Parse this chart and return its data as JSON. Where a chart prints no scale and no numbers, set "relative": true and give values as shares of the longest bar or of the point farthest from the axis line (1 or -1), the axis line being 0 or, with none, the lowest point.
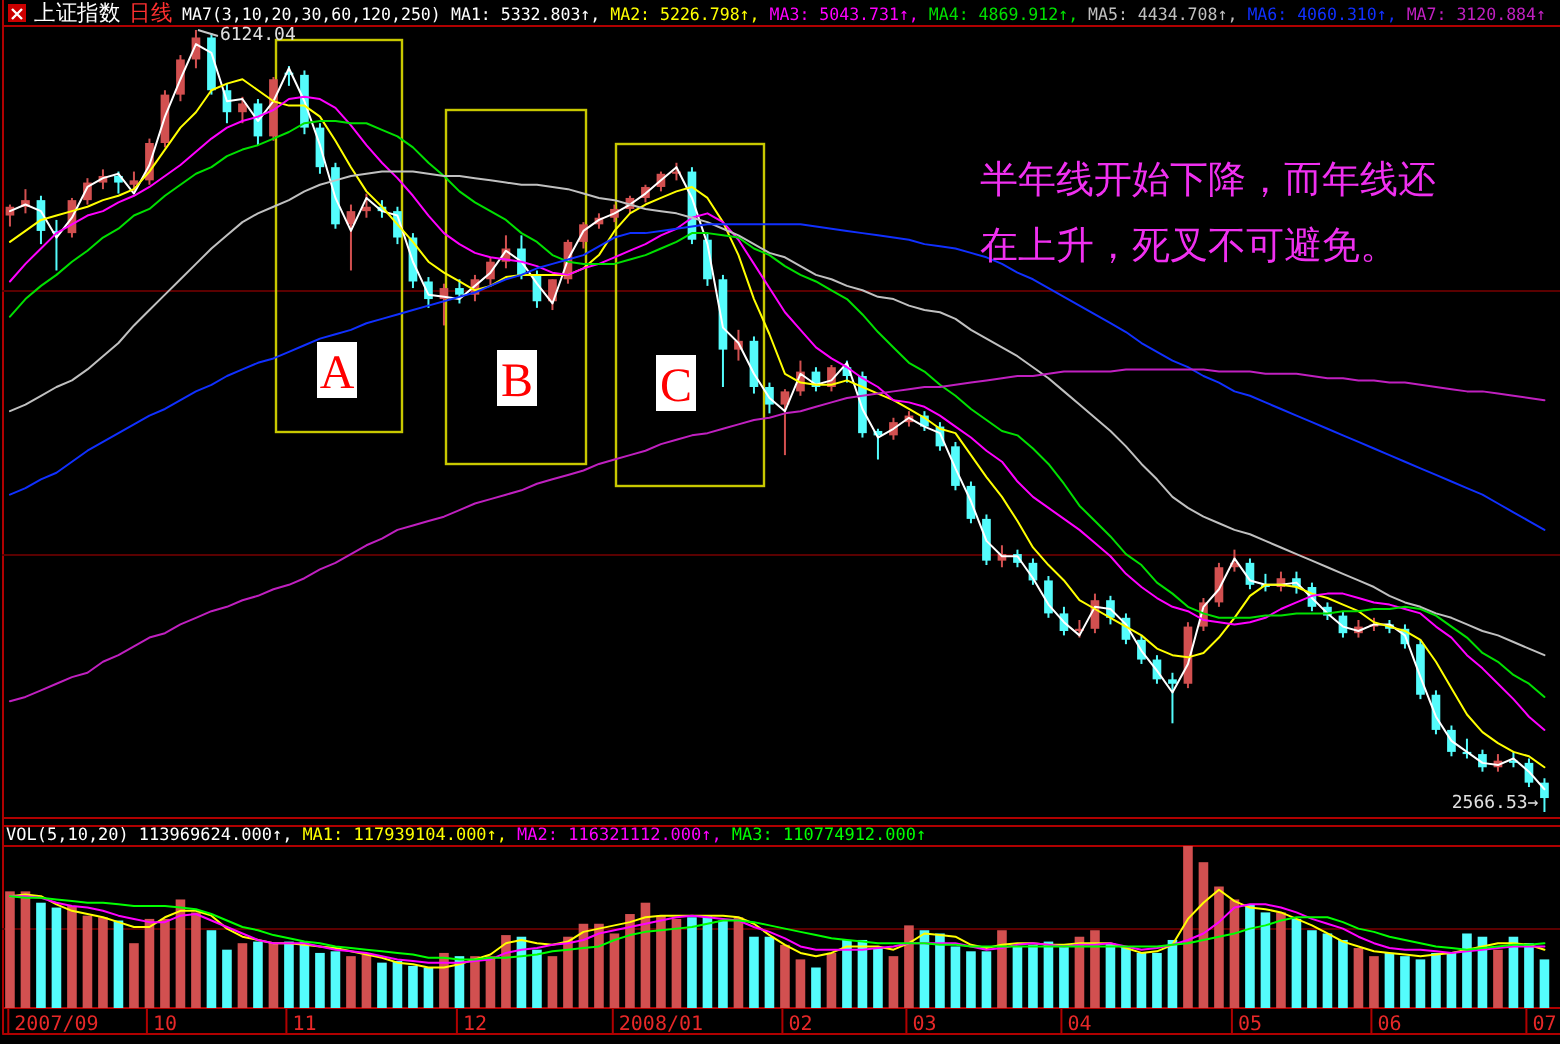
{
  "chart_data": [
    {
      "type": "candlestick",
      "title": "上证指数",
      "subtitle": "日线",
      "legend_title": "MA7(3,10,20,30,60,120,250)",
      "legend": "top",
      "tick_labels": false,
      "grid": "y",
      "yticks": [
        {
          "value": 4940,
          "label": null
        },
        {
          "value": 3740,
          "label": null
        }
      ],
      "categories": [
        null,
        null,
        null,
        "2007/09",
        null,
        null,
        null,
        null,
        null,
        null,
        "10",
        null,
        null,
        null,
        null,
        null,
        null,
        null,
        null,
        "11",
        null,
        null,
        null,
        null,
        null,
        null,
        null,
        null,
        null,
        null,
        "12",
        null,
        null,
        null,
        null,
        null,
        null,
        null,
        null,
        null,
        null,
        null,
        "2008/01",
        null,
        null,
        null,
        null,
        null,
        null,
        null,
        null,
        "02",
        null,
        null,
        null,
        null,
        null,
        null,
        null,
        "03",
        null,
        null,
        null,
        null,
        null,
        null,
        null,
        null,
        null,
        "04",
        null,
        null,
        null,
        null,
        null,
        null,
        null,
        null,
        null,
        null,
        "05",
        null,
        null,
        null,
        null,
        null,
        null,
        null,
        null,
        "06",
        null,
        null,
        null,
        null,
        null,
        null,
        null,
        null,
        null,
        "07"
      ],
      "ohlc": [
        [
          5280,
          5330,
          5230,
          5320
        ],
        [
          5320,
          5400,
          5290,
          5350
        ],
        [
          5350,
          5370,
          5150,
          5210
        ],
        [
          5210,
          5260,
          5030,
          5200
        ],
        [
          5200,
          5360,
          5180,
          5350
        ],
        [
          5350,
          5450,
          5330,
          5430
        ],
        [
          5430,
          5490,
          5400,
          5460
        ],
        [
          5460,
          5480,
          5380,
          5430
        ],
        [
          5420,
          5480,
          5390,
          5440
        ],
        [
          5440,
          5630,
          5420,
          5610
        ],
        [
          5610,
          5850,
          5590,
          5830
        ],
        [
          5830,
          6010,
          5800,
          5990
        ],
        [
          5990,
          6124.04,
          5950,
          6090
        ],
        [
          6090,
          6110,
          5830,
          5850
        ],
        [
          5850,
          5880,
          5700,
          5750
        ],
        [
          5750,
          5820,
          5700,
          5790
        ],
        [
          5790,
          5810,
          5600,
          5640
        ],
        [
          5640,
          5910,
          5620,
          5900
        ],
        [
          5930,
          5960,
          5870,
          5920
        ],
        [
          5920,
          5940,
          5650,
          5680
        ],
        [
          5680,
          5700,
          5470,
          5500
        ],
        [
          5500,
          5520,
          5220,
          5240
        ],
        [
          5240,
          5330,
          5030,
          5300
        ],
        [
          5300,
          5380,
          5270,
          5320
        ],
        [
          5320,
          5350,
          5270,
          5300
        ],
        [
          5300,
          5320,
          5150,
          5180
        ],
        [
          5180,
          5200,
          4950,
          4980
        ],
        [
          4980,
          5000,
          4860,
          4900
        ],
        [
          4900,
          4970,
          4780,
          4950
        ],
        [
          4950,
          4990,
          4880,
          4920
        ],
        [
          4920,
          5010,
          4890,
          4990
        ],
        [
          4990,
          5090,
          4960,
          5070
        ],
        [
          5070,
          5190,
          5040,
          5130
        ],
        [
          5130,
          5190,
          4990,
          5010
        ],
        [
          5010,
          5030,
          4860,
          4890
        ],
        [
          4890,
          4990,
          4850,
          4990
        ],
        [
          4990,
          5170,
          4970,
          5160
        ],
        [
          5160,
          5250,
          5130,
          5240
        ],
        [
          5240,
          5290,
          5220,
          5270
        ],
        [
          5270,
          5330,
          5250,
          5310
        ],
        [
          5310,
          5370,
          5290,
          5360
        ],
        [
          5360,
          5420,
          5340,
          5410
        ],
        [
          5410,
          5480,
          5390,
          5470
        ],
        [
          5470,
          5520,
          5440,
          5480
        ],
        [
          5480,
          5500,
          5150,
          5170
        ],
        [
          5170,
          5200,
          4960,
          4990
        ],
        [
          4990,
          5010,
          4500,
          4670
        ],
        [
          4670,
          4760,
          4620,
          4710
        ],
        [
          4710,
          4730,
          4470,
          4500
        ],
        [
          4500,
          4520,
          4380,
          4420
        ],
        [
          4420,
          4490,
          4190,
          4480
        ],
        [
          4480,
          4620,
          4460,
          4570
        ],
        [
          4570,
          4590,
          4480,
          4500
        ],
        [
          4500,
          4600,
          4480,
          4590
        ],
        [
          4590,
          4620,
          4520,
          4550
        ],
        [
          4550,
          4570,
          4270,
          4290
        ],
        [
          4300,
          4310,
          4170,
          4280
        ],
        [
          4280,
          4360,
          4260,
          4340
        ],
        [
          4340,
          4390,
          4320,
          4370
        ],
        [
          4370,
          4390,
          4300,
          4320
        ],
        [
          4320,
          4340,
          4210,
          4230
        ],
        [
          4230,
          4250,
          4030,
          4050
        ],
        [
          4050,
          4070,
          3880,
          3900
        ],
        [
          3900,
          3920,
          3690,
          3710
        ],
        [
          3710,
          3780,
          3680,
          3740
        ],
        [
          3740,
          3760,
          3680,
          3700
        ],
        [
          3700,
          3720,
          3600,
          3620
        ],
        [
          3620,
          3640,
          3450,
          3470
        ],
        [
          3470,
          3500,
          3370,
          3390
        ],
        [
          3390,
          3440,
          3360,
          3400
        ],
        [
          3400,
          3560,
          3380,
          3530
        ],
        [
          3530,
          3550,
          3420,
          3450
        ],
        [
          3450,
          3470,
          3330,
          3350
        ],
        [
          3350,
          3370,
          3240,
          3260
        ],
        [
          3260,
          3280,
          3150,
          3170
        ],
        [
          3170,
          3200,
          2970,
          3150
        ],
        [
          3150,
          3430,
          3130,
          3410
        ],
        [
          3410,
          3540,
          3390,
          3520
        ],
        [
          3520,
          3700,
          3500,
          3680
        ],
        [
          3680,
          3760,
          3660,
          3700
        ],
        [
          3700,
          3720,
          3580,
          3600
        ],
        [
          3600,
          3650,
          3570,
          3590
        ],
        [
          3590,
          3660,
          3570,
          3630
        ],
        [
          3630,
          3660,
          3560,
          3590
        ],
        [
          3590,
          3610,
          3480,
          3500
        ],
        [
          3500,
          3520,
          3440,
          3460
        ],
        [
          3460,
          3480,
          3360,
          3380
        ],
        [
          3380,
          3440,
          3360,
          3410
        ],
        [
          3410,
          3450,
          3390,
          3420
        ],
        [
          3420,
          3440,
          3380,
          3400
        ],
        [
          3400,
          3420,
          3310,
          3330
        ],
        [
          3330,
          3350,
          3080,
          3100
        ],
        [
          3100,
          3120,
          2920,
          2940
        ],
        [
          2940,
          2960,
          2820,
          2840
        ],
        [
          2840,
          2900,
          2810,
          2830
        ],
        [
          2830,
          2850,
          2750,
          2770
        ],
        [
          2770,
          2830,
          2750,
          2800
        ],
        [
          2800,
          2840,
          2770,
          2790
        ],
        [
          2790,
          2810,
          2680,
          2700
        ],
        [
          2700,
          2720,
          2566.53,
          2630
        ]
      ],
      "colors": [
        "#d25050",
        "#d25050",
        "#54fcfc",
        "#54fcfc",
        "#d25050",
        "#d25050",
        "#d25050",
        "#54fcfc",
        "#d25050",
        "#d25050",
        "#d25050",
        "#d25050",
        "#d25050",
        "#54fcfc",
        "#54fcfc",
        "#d25050",
        "#54fcfc",
        "#d25050",
        "#54fcfc",
        "#54fcfc",
        "#54fcfc",
        "#54fcfc",
        "#d25050",
        "#d25050",
        "#54fcfc",
        "#54fcfc",
        "#54fcfc",
        "#54fcfc",
        "#d25050",
        "#54fcfc",
        "#d25050",
        "#d25050",
        "#d25050",
        "#54fcfc",
        "#54fcfc",
        "#d25050",
        "#d25050",
        "#d25050",
        "#d25050",
        "#d25050",
        "#d25050",
        "#d25050",
        "#d25050",
        "#d25050",
        "#54fcfc",
        "#54fcfc",
        "#54fcfc",
        "#d25050",
        "#54fcfc",
        "#54fcfc",
        "#d25050",
        "#d25050",
        "#54fcfc",
        "#d25050",
        "#54fcfc",
        "#54fcfc",
        "#54fcfc",
        "#d25050",
        "#d25050",
        "#54fcfc",
        "#54fcfc",
        "#54fcfc",
        "#54fcfc",
        "#54fcfc",
        "#d25050",
        "#54fcfc",
        "#54fcfc",
        "#54fcfc",
        "#54fcfc",
        "#d25050",
        "#d25050",
        "#54fcfc",
        "#54fcfc",
        "#54fcfc",
        "#54fcfc",
        "#54fcfc",
        "#d25050",
        "#d25050",
        "#d25050",
        "#d25050",
        "#54fcfc",
        "#54fcfc",
        "#d25050",
        "#54fcfc",
        "#54fcfc",
        "#54fcfc",
        "#54fcfc",
        "#d25050",
        "#d25050",
        "#54fcfc",
        "#54fcfc",
        "#54fcfc",
        "#54fcfc",
        "#54fcfc",
        "#54fcfc",
        "#54fcfc",
        "#d25050",
        "#54fcfc",
        "#54fcfc",
        "#54fcfc"
      ],
      "series": [
        {
          "type": "line",
          "name": "MA1: 5332.803↑,",
          "color": "#ffffff",
          "values": [
            5300,
            5330,
            5300,
            5180,
            5270,
            5410,
            5450,
            5470,
            5380,
            5510,
            5730,
            5900,
            6060,
            6020,
            5800,
            5810,
            5710,
            5800,
            5950,
            5800,
            5600,
            5360,
            5210,
            5360,
            5300,
            5280,
            5070,
            4920,
            4910,
            4900,
            4960,
            5020,
            5120,
            5070,
            4970,
            4880,
            5080,
            5210,
            5260,
            5290,
            5330,
            5380,
            5440,
            5500,
            5360,
            5150,
            4770,
            4700,
            4560,
            4450,
            4390,
            4560,
            4510,
            4530,
            4610,
            4400,
            4270,
            4310,
            4360,
            4320,
            4290,
            4130,
            3980,
            3800,
            3730,
            3730,
            3630,
            3510,
            3430,
            3370,
            3500,
            3490,
            3420,
            3300,
            3210,
            3110,
            3240,
            3500,
            3580,
            3720,
            3620,
            3600,
            3600,
            3610,
            3540,
            3470,
            3410,
            3390,
            3420,
            3420,
            3370,
            3180,
            3000,
            2890,
            2840,
            2790,
            2780,
            2810,
            2750,
            2670
          ]
        },
        {
          "type": "line",
          "name": "MA2: 5226.798↑,",
          "color": "#ffff00",
          "values": [
            5160,
            5210,
            5260,
            5280,
            5300,
            5320,
            5350,
            5370,
            5400,
            5480,
            5580,
            5680,
            5750,
            5850,
            5880,
            5900,
            5850,
            5800,
            5780,
            5780,
            5730,
            5620,
            5500,
            5390,
            5320,
            5240,
            5160,
            5070,
            5020,
            4980,
            4940,
            4960,
            5000,
            5010,
            5010,
            5010,
            5010,
            5040,
            5100,
            5210,
            5290,
            5330,
            5360,
            5390,
            5410,
            5360,
            5250,
            5100,
            4900,
            4740,
            4560,
            4520,
            4510,
            4510,
            4530,
            4500,
            4470,
            4440,
            4400,
            4360,
            4310,
            4290,
            4190,
            4090,
            4000,
            3890,
            3770,
            3690,
            3620,
            3530,
            3490,
            3450,
            3410,
            3370,
            3310,
            3280,
            3270,
            3290,
            3360,
            3450,
            3550,
            3600,
            3600,
            3590,
            3560,
            3540,
            3510,
            3480,
            3430,
            3410,
            3390,
            3350,
            3250,
            3130,
            3010,
            2930,
            2880,
            2840,
            2820,
            2770
          ]
        },
        {
          "type": "line",
          "name": "MA3: 5043.731↑,",
          "color": "#ff00ff",
          "values": [
            4980,
            5060,
            5130,
            5200,
            5240,
            5280,
            5300,
            5340,
            5370,
            5410,
            5460,
            5510,
            5570,
            5630,
            5680,
            5710,
            5730,
            5760,
            5810,
            5820,
            5810,
            5770,
            5690,
            5600,
            5520,
            5450,
            5370,
            5280,
            5200,
            5150,
            5110,
            5090,
            5080,
            5070,
            5050,
            5020,
            5010,
            5040,
            5060,
            5090,
            5120,
            5150,
            5190,
            5220,
            5270,
            5290,
            5250,
            5170,
            5060,
            4950,
            4840,
            4760,
            4680,
            4630,
            4590,
            4540,
            4500,
            4440,
            4430,
            4410,
            4370,
            4320,
            4270,
            4210,
            4160,
            4070,
            4000,
            3950,
            3900,
            3850,
            3790,
            3730,
            3650,
            3590,
            3540,
            3500,
            3480,
            3440,
            3430,
            3420,
            3430,
            3450,
            3490,
            3520,
            3550,
            3560,
            3560,
            3540,
            3520,
            3510,
            3490,
            3470,
            3410,
            3360,
            3280,
            3220,
            3150,
            3080,
            3000,
            2940
          ]
        },
        {
          "type": "line",
          "name": "MA4: 4869.912↑,",
          "color": "#00e000",
          "values": [
            4820,
            4900,
            4960,
            5010,
            5070,
            5120,
            5180,
            5220,
            5280,
            5310,
            5370,
            5420,
            5470,
            5500,
            5550,
            5580,
            5600,
            5630,
            5660,
            5700,
            5710,
            5710,
            5700,
            5700,
            5670,
            5640,
            5590,
            5520,
            5460,
            5390,
            5340,
            5300,
            5260,
            5200,
            5160,
            5100,
            5070,
            5060,
            5060,
            5060,
            5080,
            5100,
            5130,
            5160,
            5200,
            5200,
            5190,
            5180,
            5130,
            5100,
            5050,
            5010,
            4980,
            4940,
            4900,
            4830,
            4750,
            4680,
            4610,
            4570,
            4510,
            4460,
            4400,
            4350,
            4300,
            4280,
            4220,
            4150,
            4060,
            3960,
            3890,
            3820,
            3740,
            3690,
            3610,
            3560,
            3500,
            3470,
            3450,
            3450,
            3450,
            3460,
            3460,
            3470,
            3470,
            3470,
            3480,
            3480,
            3490,
            3490,
            3500,
            3490,
            3460,
            3410,
            3360,
            3290,
            3250,
            3190,
            3150,
            3090
          ]
        },
        {
          "type": "line",
          "name": "MA5: 4434.708↑,",
          "color": "#c0c0c0",
          "values": [
            4390,
            4420,
            4460,
            4500,
            4530,
            4580,
            4640,
            4700,
            4780,
            4850,
            4920,
            4990,
            5060,
            5130,
            5190,
            5250,
            5290,
            5320,
            5350,
            5390,
            5420,
            5440,
            5460,
            5470,
            5480,
            5480,
            5480,
            5470,
            5460,
            5460,
            5450,
            5440,
            5430,
            5420,
            5420,
            5410,
            5400,
            5380,
            5360,
            5350,
            5330,
            5310,
            5300,
            5290,
            5270,
            5250,
            5220,
            5190,
            5150,
            5110,
            5090,
            5050,
            5010,
            4990,
            4960,
            4940,
            4910,
            4900,
            4870,
            4850,
            4840,
            4810,
            4760,
            4720,
            4680,
            4640,
            4590,
            4540,
            4480,
            4420,
            4360,
            4300,
            4230,
            4150,
            4080,
            4000,
            3950,
            3910,
            3880,
            3850,
            3830,
            3800,
            3770,
            3740,
            3710,
            3680,
            3650,
            3620,
            3590,
            3550,
            3520,
            3500,
            3470,
            3450,
            3420,
            3390,
            3370,
            3340,
            3310,
            3280
          ]
        },
        {
          "type": "line",
          "name": "MA6: 4060.310↑,",
          "color": "#1030ff",
          "values": [
            4010,
            4040,
            4080,
            4110,
            4160,
            4210,
            4250,
            4290,
            4330,
            4370,
            4400,
            4440,
            4480,
            4510,
            4550,
            4580,
            4610,
            4630,
            4660,
            4690,
            4720,
            4740,
            4760,
            4790,
            4810,
            4830,
            4850,
            4870,
            4890,
            4910,
            4930,
            4960,
            4990,
            5010,
            5040,
            5060,
            5080,
            5100,
            5140,
            5180,
            5200,
            5200,
            5210,
            5220,
            5230,
            5240,
            5240,
            5240,
            5240,
            5240,
            5240,
            5240,
            5230,
            5220,
            5210,
            5200,
            5190,
            5180,
            5170,
            5150,
            5140,
            5130,
            5110,
            5090,
            5060,
            5020,
            4990,
            4950,
            4910,
            4870,
            4830,
            4790,
            4750,
            4700,
            4660,
            4620,
            4590,
            4550,
            4520,
            4480,
            4460,
            4430,
            4400,
            4370,
            4340,
            4310,
            4280,
            4250,
            4220,
            4190,
            4160,
            4130,
            4100,
            4070,
            4040,
            4010,
            3970,
            3930,
            3890,
            3850
          ]
        },
        {
          "type": "line",
          "name": "MA7: 3120.884↑",
          "color": "#c020c0",
          "values": [
            3070,
            3090,
            3120,
            3150,
            3180,
            3200,
            3250,
            3280,
            3320,
            3360,
            3380,
            3420,
            3450,
            3480,
            3500,
            3530,
            3550,
            3580,
            3600,
            3630,
            3670,
            3700,
            3740,
            3780,
            3810,
            3850,
            3870,
            3890,
            3910,
            3940,
            3970,
            3990,
            4010,
            4030,
            4060,
            4080,
            4100,
            4120,
            4150,
            4170,
            4190,
            4210,
            4240,
            4260,
            4280,
            4290,
            4310,
            4330,
            4350,
            4360,
            4380,
            4390,
            4410,
            4430,
            4450,
            4460,
            4470,
            4480,
            4490,
            4500,
            4500,
            4510,
            4520,
            4530,
            4540,
            4550,
            4550,
            4560,
            4570,
            4570,
            4570,
            4570,
            4580,
            4580,
            4580,
            4580,
            4580,
            4580,
            4570,
            4570,
            4570,
            4560,
            4560,
            4560,
            4550,
            4540,
            4540,
            4530,
            4530,
            4520,
            4520,
            4510,
            4500,
            4490,
            4480,
            4480,
            4470,
            4460,
            4450,
            4440
          ]
        }
      ],
      "annotations": [
        "6124.04",
        {
          "text": "2566.53→",
          "x": "07",
          "y": 2566.53
        },
        "A",
        "B",
        "C",
        "半年线开始下降，而年线还在上升，死叉不可避免。"
      ]
    },
    {
      "type": "bar",
      "relative": true,
      "legend_title": "VOL(5,10,20)",
      "legend": "top",
      "tick_labels": "x",
      "ref_lines": [
        {
          "axis": "y",
          "value": 0.5,
          "color": "#5a0000"
        }
      ],
      "categories": [
        null,
        null,
        null,
        "2007/09",
        null,
        null,
        null,
        null,
        null,
        null,
        "10",
        null,
        null,
        null,
        null,
        null,
        null,
        null,
        null,
        "11",
        null,
        null,
        null,
        null,
        null,
        null,
        null,
        null,
        null,
        null,
        "12",
        null,
        null,
        null,
        null,
        null,
        null,
        null,
        null,
        null,
        null,
        null,
        "2008/01",
        null,
        null,
        null,
        null,
        null,
        null,
        null,
        null,
        "02",
        null,
        null,
        null,
        null,
        null,
        null,
        null,
        "03",
        null,
        null,
        null,
        null,
        null,
        null,
        null,
        null,
        null,
        "04",
        null,
        null,
        null,
        null,
        null,
        null,
        null,
        null,
        null,
        null,
        "05",
        null,
        null,
        null,
        null,
        null,
        null,
        null,
        null,
        "06",
        null,
        null,
        null,
        null,
        null,
        null,
        null,
        null,
        null,
        "07"
      ],
      "values": [
        0.72,
        0.72,
        0.65,
        0.62,
        0.63,
        0.57,
        0.56,
        0.54,
        0.4,
        0.55,
        0.55,
        0.67,
        0.59,
        0.48,
        0.36,
        0.4,
        0.41,
        0.4,
        0.41,
        0.41,
        0.34,
        0.35,
        0.32,
        0.33,
        0.28,
        0.29,
        0.26,
        0.25,
        0.34,
        0.32,
        0.32,
        0.32,
        0.45,
        0.44,
        0.36,
        0.32,
        0.44,
        0.52,
        0.52,
        0.46,
        0.58,
        0.65,
        0.57,
        0.55,
        0.56,
        0.57,
        0.54,
        0.56,
        0.44,
        0.44,
        0.39,
        0.3,
        0.25,
        0.34,
        0.42,
        0.42,
        0.37,
        0.32,
        0.51,
        0.48,
        0.46,
        0.38,
        0.35,
        0.35,
        0.48,
        0.38,
        0.39,
        0.41,
        0.38,
        0.44,
        0.48,
        0.4,
        0.38,
        0.34,
        0.34,
        0.42,
        1.0,
        0.9,
        0.75,
        0.67,
        0.64,
        0.59,
        0.59,
        0.55,
        0.48,
        0.46,
        0.42,
        0.37,
        0.32,
        0.34,
        0.32,
        0.3,
        0.34,
        0.34,
        0.46,
        0.44,
        0.36,
        0.44,
        0.4,
        0.3
      ],
      "colors": [
        "#d25050",
        "#d25050",
        "#54fcfc",
        "#54fcfc",
        "#d25050",
        "#d25050",
        "#d25050",
        "#54fcfc",
        "#d25050",
        "#d25050",
        "#d25050",
        "#d25050",
        "#d25050",
        "#54fcfc",
        "#54fcfc",
        "#d25050",
        "#54fcfc",
        "#d25050",
        "#54fcfc",
        "#54fcfc",
        "#54fcfc",
        "#54fcfc",
        "#d25050",
        "#d25050",
        "#54fcfc",
        "#54fcfc",
        "#54fcfc",
        "#54fcfc",
        "#d25050",
        "#54fcfc",
        "#d25050",
        "#d25050",
        "#d25050",
        "#54fcfc",
        "#54fcfc",
        "#d25050",
        "#d25050",
        "#d25050",
        "#d25050",
        "#d25050",
        "#d25050",
        "#d25050",
        "#d25050",
        "#d25050",
        "#54fcfc",
        "#54fcfc",
        "#54fcfc",
        "#d25050",
        "#54fcfc",
        "#54fcfc",
        "#d25050",
        "#d25050",
        "#54fcfc",
        "#d25050",
        "#54fcfc",
        "#54fcfc",
        "#54fcfc",
        "#d25050",
        "#d25050",
        "#54fcfc",
        "#54fcfc",
        "#54fcfc",
        "#54fcfc",
        "#54fcfc",
        "#d25050",
        "#54fcfc",
        "#54fcfc",
        "#54fcfc",
        "#54fcfc",
        "#d25050",
        "#d25050",
        "#54fcfc",
        "#54fcfc",
        "#54fcfc",
        "#54fcfc",
        "#54fcfc",
        "#d25050",
        "#d25050",
        "#d25050",
        "#d25050",
        "#54fcfc",
        "#54fcfc",
        "#d25050",
        "#54fcfc",
        "#54fcfc",
        "#54fcfc",
        "#54fcfc",
        "#d25050",
        "#d25050",
        "#54fcfc",
        "#54fcfc",
        "#54fcfc",
        "#54fcfc",
        "#54fcfc",
        "#54fcfc",
        "#54fcfc",
        "#d25050",
        "#54fcfc",
        "#54fcfc",
        "#54fcfc"
      ],
      "series": [
        {
          "type": "line",
          "name": "MA1: 117939104.000↑,",
          "color": "#ffff00",
          "values": [
            0.69,
            0.7,
            0.69,
            0.64,
            0.6,
            0.58,
            0.56,
            0.53,
            0.5,
            0.5,
            0.56,
            0.6,
            0.6,
            0.57,
            0.49,
            0.44,
            0.42,
            0.4,
            0.4,
            0.39,
            0.38,
            0.37,
            0.35,
            0.33,
            0.31,
            0.28,
            0.27,
            0.25,
            0.25,
            0.27,
            0.3,
            0.33,
            0.4,
            0.42,
            0.4,
            0.39,
            0.41,
            0.47,
            0.49,
            0.51,
            0.53,
            0.56,
            0.57,
            0.57,
            0.57,
            0.57,
            0.57,
            0.56,
            0.52,
            0.45,
            0.39,
            0.34,
            0.32,
            0.34,
            0.38,
            0.38,
            0.38,
            0.36,
            0.4,
            0.46,
            0.45,
            0.44,
            0.39,
            0.37,
            0.39,
            0.4,
            0.4,
            0.39,
            0.39,
            0.4,
            0.4,
            0.4,
            0.37,
            0.34,
            0.35,
            0.39,
            0.55,
            0.65,
            0.73,
            0.66,
            0.62,
            0.61,
            0.59,
            0.55,
            0.51,
            0.46,
            0.41,
            0.38,
            0.35,
            0.34,
            0.33,
            0.32,
            0.33,
            0.34,
            0.36,
            0.38,
            0.4,
            0.4,
            0.39,
            0.36
          ]
        },
        {
          "type": "line",
          "name": "MA2: 116321112.000↑,",
          "color": "#ff00ff",
          "values": [
            0.69,
            0.69,
            0.68,
            0.65,
            0.63,
            0.62,
            0.6,
            0.57,
            0.55,
            0.53,
            0.53,
            0.57,
            0.58,
            0.54,
            0.5,
            0.46,
            0.42,
            0.4,
            0.4,
            0.4,
            0.38,
            0.36,
            0.35,
            0.34,
            0.32,
            0.3,
            0.29,
            0.28,
            0.28,
            0.28,
            0.29,
            0.3,
            0.34,
            0.36,
            0.37,
            0.39,
            0.4,
            0.42,
            0.46,
            0.48,
            0.5,
            0.52,
            0.54,
            0.56,
            0.57,
            0.56,
            0.55,
            0.54,
            0.5,
            0.47,
            0.43,
            0.38,
            0.36,
            0.36,
            0.36,
            0.36,
            0.37,
            0.38,
            0.4,
            0.4,
            0.4,
            0.4,
            0.38,
            0.36,
            0.37,
            0.39,
            0.4,
            0.39,
            0.38,
            0.39,
            0.39,
            0.4,
            0.38,
            0.36,
            0.37,
            0.39,
            0.42,
            0.46,
            0.53,
            0.62,
            0.64,
            0.64,
            0.62,
            0.59,
            0.55,
            0.52,
            0.49,
            0.44,
            0.4,
            0.37,
            0.36,
            0.36,
            0.35,
            0.34,
            0.35,
            0.36,
            0.37,
            0.38,
            0.38,
            0.38
          ]
        },
        {
          "type": "line",
          "name": "MA3: 110774912.000↑",
          "color": "#00ff00",
          "values": [
            0.69,
            0.68,
            0.68,
            0.67,
            0.66,
            0.65,
            0.65,
            0.64,
            0.63,
            0.63,
            0.63,
            0.62,
            0.61,
            0.58,
            0.54,
            0.5,
            0.48,
            0.45,
            0.43,
            0.41,
            0.4,
            0.38,
            0.37,
            0.36,
            0.35,
            0.34,
            0.33,
            0.31,
            0.31,
            0.3,
            0.3,
            0.31,
            0.31,
            0.32,
            0.33,
            0.35,
            0.36,
            0.37,
            0.38,
            0.42,
            0.45,
            0.47,
            0.48,
            0.49,
            0.5,
            0.52,
            0.54,
            0.54,
            0.53,
            0.51,
            0.49,
            0.47,
            0.45,
            0.43,
            0.42,
            0.41,
            0.4,
            0.4,
            0.4,
            0.4,
            0.39,
            0.39,
            0.38,
            0.38,
            0.38,
            0.38,
            0.38,
            0.38,
            0.38,
            0.38,
            0.38,
            0.38,
            0.38,
            0.38,
            0.38,
            0.39,
            0.4,
            0.42,
            0.44,
            0.46,
            0.49,
            0.51,
            0.54,
            0.56,
            0.56,
            0.56,
            0.53,
            0.49,
            0.47,
            0.44,
            0.42,
            0.4,
            0.38,
            0.37,
            0.36,
            0.37,
            0.38,
            0.39,
            0.39,
            0.4
          ]
        }
      ],
      "annotations": [
        "113969624.000↑,"
      ]
    }
  ]
}
